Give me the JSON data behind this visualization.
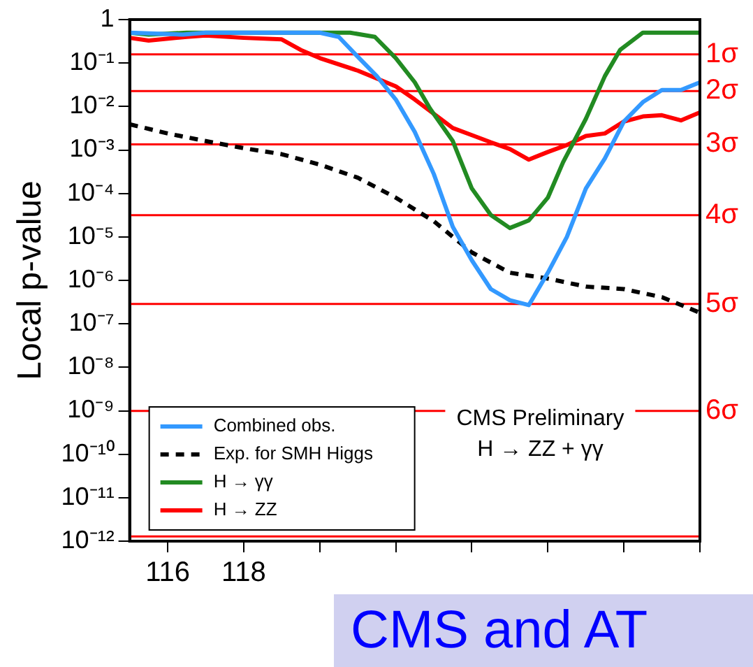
{
  "chart_data": {
    "type": "line",
    "ylabel": "Local p-value",
    "xlim": [
      115,
      130
    ],
    "xticks": [
      116,
      118,
      {
        "value": 120,
        "label": null
      },
      {
        "value": 122,
        "label": null
      },
      {
        "value": 124,
        "label": null
      },
      {
        "value": 126,
        "label": null
      },
      {
        "value": 128,
        "label": null
      },
      {
        "value": 130,
        "label": null
      }
    ],
    "ylim": [
      1e-12,
      1
    ],
    "yticks": [
      {
        "value": 1,
        "label": "1"
      },
      {
        "value": 0.1,
        "label": "10⁻¹"
      },
      {
        "value": 0.01,
        "label": "10⁻²"
      },
      {
        "value": 0.001,
        "label": "10⁻³"
      },
      {
        "value": 0.0001,
        "label": "10⁻⁴"
      },
      {
        "value": 1e-05,
        "label": "10⁻⁵"
      },
      {
        "value": 1e-06,
        "label": "10⁻⁶"
      },
      {
        "value": 1e-07,
        "label": "10⁻⁷"
      },
      {
        "value": 1e-08,
        "label": "10⁻⁸"
      },
      {
        "value": 1e-09,
        "label": "10⁻⁹"
      },
      {
        "value": 1e-10,
        "label": "10⁻¹⁰"
      },
      {
        "value": 1e-11,
        "label": "10⁻¹¹"
      },
      {
        "value": 1e-12,
        "label": "10⁻¹²"
      }
    ],
    "log": "y",
    "grid": false,
    "legend": "bottom left",
    "marker": "none",
    "series": [
      {
        "name": "Combined obs.",
        "color": "#3399ff",
        "line_style": "solid",
        "x": [
          115,
          116.4,
          117,
          118,
          119,
          120,
          120.5,
          121,
          121.5,
          122,
          122.5,
          123,
          123.5,
          124,
          124.5,
          125,
          125.5,
          126,
          126.5,
          127,
          127.5,
          128,
          128.5,
          129,
          129.5,
          130
        ],
        "values": [
          0.5,
          0.45,
          0.5,
          0.5,
          0.5,
          0.5,
          0.4,
          0.14,
          0.05,
          0.0145,
          0.0026,
          0.00028,
          1.7e-05,
          2.9e-06,
          6.3e-07,
          3.5e-07,
          2.7e-07,
          1.5e-06,
          1e-05,
          0.00013,
          0.00064,
          0.0045,
          0.0126,
          0.024,
          0.024,
          0.036
        ]
      },
      {
        "name": "Exp. for SMH Higgs",
        "color": "#000000",
        "line_style": "dashed",
        "x": [
          115,
          116,
          117,
          118,
          119,
          120,
          121,
          122,
          123,
          124,
          125,
          126,
          127,
          128,
          129,
          130
        ],
        "values": [
          0.0039,
          0.0024,
          0.0016,
          0.0011,
          0.0008,
          0.00046,
          0.00023,
          8e-05,
          2.3e-05,
          4.4e-06,
          1.5e-06,
          1.1e-06,
          7.2e-07,
          6.3e-07,
          4.1e-07,
          1.8e-07
        ]
      },
      {
        "name": "H → γγ",
        "color": "#228b22",
        "line_style": "solid",
        "x": [
          115,
          115.5,
          116.5,
          117,
          118,
          119,
          120,
          120.8,
          121.45,
          122,
          122.5,
          122.9,
          123.5,
          124,
          124.5,
          125,
          125.5,
          126,
          126.4,
          127,
          127.5,
          127.9,
          128.5,
          129.1,
          130
        ],
        "values": [
          0.5,
          0.45,
          0.5,
          0.5,
          0.5,
          0.5,
          0.5,
          0.5,
          0.4,
          0.13,
          0.036,
          0.009,
          0.0016,
          0.00013,
          3.2e-05,
          1.6e-05,
          2.4e-05,
          8e-05,
          0.00052,
          0.0052,
          0.05,
          0.2,
          0.5,
          0.5,
          0.5
        ]
      },
      {
        "name": "H → ZZ",
        "color": "#ff0000",
        "line_style": "solid",
        "x": [
          115,
          115.5,
          116.5,
          117,
          118,
          119,
          119.5,
          120,
          121,
          122,
          122.5,
          123.5,
          124,
          124.5,
          125,
          125.5,
          126,
          126.5,
          127,
          127.5,
          128,
          128.5,
          129,
          129.5,
          130
        ],
        "values": [
          0.38,
          0.33,
          0.4,
          0.43,
          0.38,
          0.35,
          0.2,
          0.13,
          0.067,
          0.029,
          0.0145,
          0.0032,
          0.0022,
          0.0015,
          0.00105,
          0.0006,
          0.0009,
          0.0013,
          0.0021,
          0.0024,
          0.0045,
          0.0059,
          0.0063,
          0.0048,
          0.0073
        ]
      }
    ],
    "ref_lines": [
      {
        "axis": "y",
        "value": 0.1587,
        "label": "1σ",
        "color": "#ff0000"
      },
      {
        "axis": "y",
        "value": 0.02275,
        "label": "2σ",
        "color": "#ff0000"
      },
      {
        "axis": "y",
        "value": 0.00135,
        "label": "3σ",
        "color": "#ff0000"
      },
      {
        "axis": "y",
        "value": 3.17e-05,
        "label": "4σ",
        "color": "#ff0000"
      },
      {
        "axis": "y",
        "value": 2.87e-07,
        "label": "5σ",
        "color": "#ff0000"
      },
      {
        "axis": "y",
        "value": 9.87e-10,
        "label": "6σ",
        "color": "#ff0000"
      },
      {
        "axis": "y",
        "value": 1.28e-12,
        "label": null,
        "color": "#ff0000"
      }
    ],
    "annotations": [
      "CMS Preliminary",
      "H → ZZ + γγ",
      "CMS and AT"
    ]
  }
}
